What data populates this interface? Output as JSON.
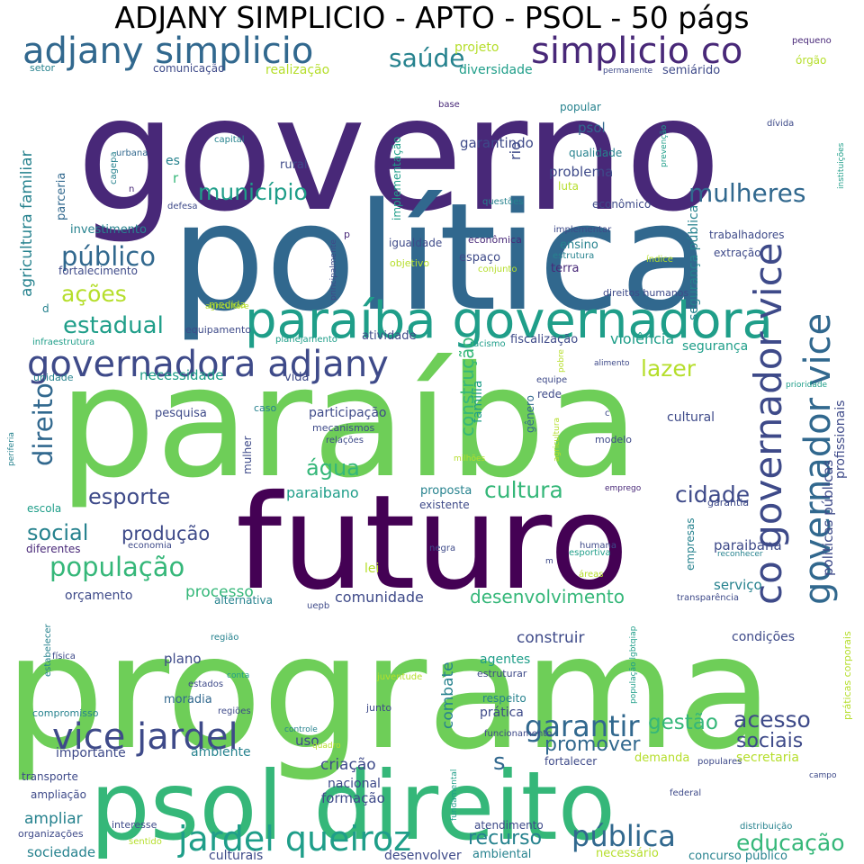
{
  "title": "ADJANY SIMPLICIO - APTO - PSOL - 50 págs",
  "palette": {
    "dark_purple": "#440154",
    "indigo": "#482878",
    "blue": "#3e4a89",
    "slate": "#31688e",
    "teal": "#26828e",
    "green_teal": "#1f9e89",
    "green": "#35b779",
    "light_green": "#6ece58",
    "lime": "#b5de2b",
    "yellow": "#fde725"
  },
  "words": [
    {
      "text": "governo",
      "color": "indigo"
    },
    {
      "text": "política",
      "color": "slate"
    },
    {
      "text": "paraíba",
      "color": "light_green"
    },
    {
      "text": "futuro",
      "color": "dark_purple"
    },
    {
      "text": "programa",
      "color": "light_green"
    },
    {
      "text": "psol direito",
      "color": "green"
    },
    {
      "text": "paraíba governadora",
      "color": "green_teal"
    },
    {
      "text": "governadora adjany",
      "color": "blue"
    },
    {
      "text": "adjany simplicio",
      "color": "slate"
    },
    {
      "text": "simplicio co",
      "color": "indigo"
    },
    {
      "text": "co governador vice",
      "color": "blue"
    },
    {
      "text": "governador vice",
      "color": "slate"
    },
    {
      "text": "vice jardel",
      "color": "blue"
    },
    {
      "text": "jardel queiroz",
      "color": "green_teal"
    },
    {
      "text": "garantir",
      "color": "slate"
    },
    {
      "text": "direito",
      "color": "slate"
    },
    {
      "text": "mulheres",
      "color": "slate"
    },
    {
      "text": "município",
      "color": "green_teal"
    },
    {
      "text": "público",
      "color": "slate"
    },
    {
      "text": "ações",
      "color": "lime"
    },
    {
      "text": "estadual",
      "color": "green_teal"
    },
    {
      "text": "saúde",
      "color": "teal"
    },
    {
      "text": "população",
      "color": "green"
    },
    {
      "text": "esporte",
      "color": "blue"
    },
    {
      "text": "social",
      "color": "teal"
    },
    {
      "text": "produção",
      "color": "blue"
    },
    {
      "text": "água",
      "color": "green"
    },
    {
      "text": "cultura",
      "color": "green"
    },
    {
      "text": "cidade",
      "color": "blue"
    },
    {
      "text": "lazer",
      "color": "lime"
    },
    {
      "text": "acesso",
      "color": "blue"
    },
    {
      "text": "gestão",
      "color": "green"
    },
    {
      "text": "pública",
      "color": "slate"
    },
    {
      "text": "educação",
      "color": "green"
    },
    {
      "text": "recurso",
      "color": "teal"
    },
    {
      "text": "promover",
      "color": "slate"
    },
    {
      "text": "sociais",
      "color": "blue"
    },
    {
      "text": "desenvolvimento",
      "color": "green"
    },
    {
      "text": "construção",
      "color": "green"
    },
    {
      "text": "agricultura familiar",
      "color": "teal"
    },
    {
      "text": "s",
      "color": "slate"
    },
    {
      "text": "processo",
      "color": "green"
    },
    {
      "text": "comunidade",
      "color": "blue"
    },
    {
      "text": "violência",
      "color": "green_teal"
    },
    {
      "text": "segurança",
      "color": "green_teal"
    },
    {
      "text": "segurança pública",
      "color": "teal"
    },
    {
      "text": "políticas públicas",
      "color": "blue"
    },
    {
      "text": "profissionais",
      "color": "blue"
    },
    {
      "text": "cultural",
      "color": "blue"
    },
    {
      "text": "paraibano",
      "color": "green_teal"
    },
    {
      "text": "paraibana",
      "color": "blue"
    },
    {
      "text": "construir",
      "color": "blue"
    },
    {
      "text": "combate",
      "color": "teal"
    },
    {
      "text": "participação",
      "color": "blue"
    },
    {
      "text": "necessidade",
      "color": "green_teal"
    },
    {
      "text": "orçamento",
      "color": "blue"
    },
    {
      "text": "serviço",
      "color": "teal"
    },
    {
      "text": "garantindo",
      "color": "blue"
    },
    {
      "text": "psol",
      "color": "slate"
    },
    {
      "text": "problema",
      "color": "blue"
    },
    {
      "text": "rio",
      "color": "blue"
    },
    {
      "text": "família",
      "color": "green_teal"
    },
    {
      "text": "criação",
      "color": "blue"
    },
    {
      "text": "formação",
      "color": "blue"
    },
    {
      "text": "nacional",
      "color": "blue"
    },
    {
      "text": "ampliar",
      "color": "teal"
    },
    {
      "text": "sociedade",
      "color": "teal"
    },
    {
      "text": "importante",
      "color": "blue"
    },
    {
      "text": "ambiente",
      "color": "teal"
    },
    {
      "text": "uso",
      "color": "blue"
    },
    {
      "text": "prática",
      "color": "blue"
    },
    {
      "text": "agentes",
      "color": "green_teal"
    },
    {
      "text": "plano",
      "color": "blue"
    },
    {
      "text": "moradia",
      "color": "slate"
    },
    {
      "text": "condições",
      "color": "blue"
    },
    {
      "text": "secretaria",
      "color": "lime"
    },
    {
      "text": "demanda",
      "color": "lime"
    },
    {
      "text": "necessário",
      "color": "lime"
    },
    {
      "text": "atendimento",
      "color": "blue"
    },
    {
      "text": "ambiental",
      "color": "teal"
    },
    {
      "text": "desenvolver",
      "color": "blue"
    },
    {
      "text": "culturais",
      "color": "blue"
    },
    {
      "text": "concurso público",
      "color": "teal"
    },
    {
      "text": "investimento",
      "color": "teal"
    },
    {
      "text": "fortalecimento",
      "color": "blue"
    },
    {
      "text": "projeto",
      "color": "lime"
    },
    {
      "text": "diversidade",
      "color": "green_teal"
    },
    {
      "text": "realização",
      "color": "lime"
    },
    {
      "text": "comunicação",
      "color": "blue"
    },
    {
      "text": "semiárido",
      "color": "blue"
    },
    {
      "text": "órgão",
      "color": "lime"
    },
    {
      "text": "setor",
      "color": "teal"
    },
    {
      "text": "pequeno",
      "color": "indigo"
    },
    {
      "text": "permanente",
      "color": "blue"
    },
    {
      "text": "popular",
      "color": "teal"
    },
    {
      "text": "qualidade",
      "color": "teal"
    },
    {
      "text": "implementação",
      "color": "green_teal"
    },
    {
      "text": "dívida",
      "color": "blue"
    },
    {
      "text": "instituições",
      "color": "green_teal"
    },
    {
      "text": "prevenção",
      "color": "green_teal"
    },
    {
      "text": "capital",
      "color": "teal"
    },
    {
      "text": "urbana",
      "color": "slate"
    },
    {
      "text": "cagepa",
      "color": "teal"
    },
    {
      "text": "parceria",
      "color": "slate"
    },
    {
      "text": "rural",
      "color": "blue"
    },
    {
      "text": "es",
      "color": "teal"
    },
    {
      "text": "r",
      "color": "green"
    },
    {
      "text": "base",
      "color": "indigo"
    },
    {
      "text": "luta",
      "color": "lime"
    },
    {
      "text": "econômico",
      "color": "blue"
    },
    {
      "text": "questões",
      "color": "teal"
    },
    {
      "text": "defesa",
      "color": "blue"
    },
    {
      "text": "n",
      "color": "indigo"
    },
    {
      "text": "implementar",
      "color": "blue"
    },
    {
      "text": "econômica",
      "color": "indigo"
    },
    {
      "text": "igualdade",
      "color": "blue"
    },
    {
      "text": "espaço",
      "color": "blue"
    },
    {
      "text": "ensino",
      "color": "teal"
    },
    {
      "text": "terra",
      "color": "indigo"
    },
    {
      "text": "estrutura",
      "color": "teal"
    },
    {
      "text": "trabalhadores",
      "color": "blue"
    },
    {
      "text": "extração",
      "color": "blue"
    },
    {
      "text": "índice",
      "color": "lime"
    },
    {
      "text": "objetivo",
      "color": "lime"
    },
    {
      "text": "conjunto",
      "color": "lime"
    },
    {
      "text": "principalmente",
      "color": "blue"
    },
    {
      "text": "p",
      "color": "indigo"
    },
    {
      "text": "direitos humanos",
      "color": "blue"
    },
    {
      "text": "agricultore",
      "color": "lime"
    },
    {
      "text": "medida",
      "color": "lime"
    },
    {
      "text": "d",
      "color": "teal"
    },
    {
      "text": "equipamento",
      "color": "blue"
    },
    {
      "text": "planejamento",
      "color": "green_teal"
    },
    {
      "text": "infraestrutura",
      "color": "green_teal"
    },
    {
      "text": "atividade",
      "color": "blue"
    },
    {
      "text": "fiscalização",
      "color": "blue"
    },
    {
      "text": "racismo",
      "color": "green_teal"
    },
    {
      "text": "pobre",
      "color": "lime"
    },
    {
      "text": "alimento",
      "color": "blue"
    },
    {
      "text": "equipe",
      "color": "blue"
    },
    {
      "text": "prioridade",
      "color": "green_teal"
    },
    {
      "text": "unidade",
      "color": "teal"
    },
    {
      "text": "vida",
      "color": "blue"
    },
    {
      "text": "rede",
      "color": "blue"
    },
    {
      "text": "gênero",
      "color": "slate"
    },
    {
      "text": "pesquisa",
      "color": "blue"
    },
    {
      "text": "caso",
      "color": "teal"
    },
    {
      "text": "mecanismos",
      "color": "blue"
    },
    {
      "text": "relações",
      "color": "blue"
    },
    {
      "text": "mulher",
      "color": "blue"
    },
    {
      "text": "modelo",
      "color": "blue"
    },
    {
      "text": "c",
      "color": "blue"
    },
    {
      "text": "agricultura",
      "color": "lime"
    },
    {
      "text": "milhões",
      "color": "lime"
    },
    {
      "text": "periferia",
      "color": "teal"
    },
    {
      "text": "proposta",
      "color": "teal"
    },
    {
      "text": "existente",
      "color": "blue"
    },
    {
      "text": "emprego",
      "color": "indigo"
    },
    {
      "text": "garantia",
      "color": "blue"
    },
    {
      "text": "escola",
      "color": "green_teal"
    },
    {
      "text": "diferentes",
      "color": "indigo"
    },
    {
      "text": "economia",
      "color": "blue"
    },
    {
      "text": "lei",
      "color": "lime"
    },
    {
      "text": "negra",
      "color": "blue"
    },
    {
      "text": "humana",
      "color": "blue"
    },
    {
      "text": "esportiva",
      "color": "green_teal"
    },
    {
      "text": "empresas",
      "color": "teal"
    },
    {
      "text": "reconhecer",
      "color": "teal"
    },
    {
      "text": "m",
      "color": "blue"
    },
    {
      "text": "áreas",
      "color": "lime"
    },
    {
      "text": "alternativa",
      "color": "teal"
    },
    {
      "text": "uepb",
      "color": "blue"
    },
    {
      "text": "transparência",
      "color": "blue"
    },
    {
      "text": "estabelecer",
      "color": "teal"
    },
    {
      "text": "região",
      "color": "teal"
    },
    {
      "text": "conta",
      "color": "green_teal"
    },
    {
      "text": "física",
      "color": "blue"
    },
    {
      "text": "estados",
      "color": "blue"
    },
    {
      "text": "regiões",
      "color": "blue"
    },
    {
      "text": "compromisso",
      "color": "teal"
    },
    {
      "text": "juventude",
      "color": "lime"
    },
    {
      "text": "estruturar",
      "color": "blue"
    },
    {
      "text": "respeito",
      "color": "teal"
    },
    {
      "text": "população lgbtqiap",
      "color": "green_teal"
    },
    {
      "text": "práticas corporais",
      "color": "lime"
    },
    {
      "text": "junto",
      "color": "blue"
    },
    {
      "text": "funcionamento",
      "color": "blue"
    },
    {
      "text": "controle",
      "color": "teal"
    },
    {
      "text": "quadro",
      "color": "lime"
    },
    {
      "text": "fortalecer",
      "color": "blue"
    },
    {
      "text": "populares",
      "color": "blue"
    },
    {
      "text": "campo",
      "color": "blue"
    },
    {
      "text": "transporte",
      "color": "blue"
    },
    {
      "text": "ampliação",
      "color": "blue"
    },
    {
      "text": "fundamental",
      "color": "green_teal"
    },
    {
      "text": "federal",
      "color": "blue"
    },
    {
      "text": "interesse",
      "color": "blue"
    },
    {
      "text": "organizações",
      "color": "blue"
    },
    {
      "text": "sentido",
      "color": "lime"
    },
    {
      "text": "distribuição",
      "color": "teal"
    }
  ]
}
